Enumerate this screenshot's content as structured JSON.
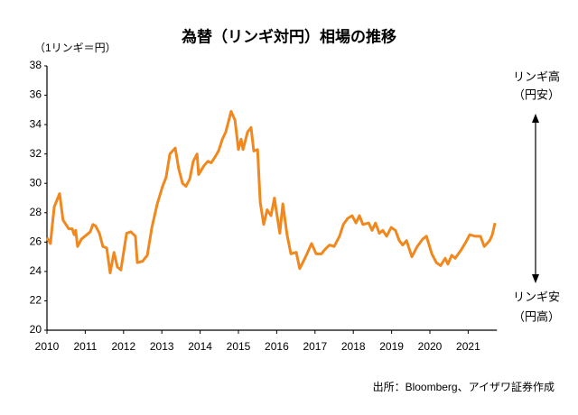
{
  "chart_data": {
    "type": "line",
    "title": "為替（リンギ対円）相場の推移",
    "y_unit": "（1リンギ＝円）",
    "annotations": [
      "リンギ高",
      "（円安）",
      "リンギ安",
      "（円高）"
    ],
    "source": "出所：Bloomberg、アイザワ証券作成",
    "xlim": [
      2010,
      2021.75
    ],
    "xticks": [
      2010,
      2011,
      2012,
      2013,
      2014,
      2015,
      2016,
      2017,
      2018,
      2019,
      2020,
      2021
    ],
    "ylim": [
      20,
      38
    ],
    "yticks": [
      20,
      22,
      24,
      26,
      28,
      30,
      32,
      34,
      36,
      38
    ],
    "grid": false,
    "series": [
      {
        "name": "リンギ対円",
        "color": "#f0881e",
        "x": [
          2010.0,
          2010.09,
          2010.19,
          2010.33,
          2010.42,
          2010.57,
          2010.66,
          2010.71,
          2010.75,
          2010.8,
          2010.9,
          2011.04,
          2011.13,
          2011.2,
          2011.27,
          2011.37,
          2011.46,
          2011.56,
          2011.65,
          2011.75,
          2011.84,
          2011.93,
          2012.08,
          2012.19,
          2012.31,
          2012.36,
          2012.5,
          2012.62,
          2012.74,
          2012.88,
          2013.02,
          2013.11,
          2013.21,
          2013.35,
          2013.44,
          2013.54,
          2013.63,
          2013.73,
          2013.82,
          2013.92,
          2013.96,
          2014.1,
          2014.2,
          2014.29,
          2014.39,
          2014.48,
          2014.58,
          2014.67,
          2014.81,
          2014.91,
          2015.0,
          2015.07,
          2015.12,
          2015.24,
          2015.33,
          2015.4,
          2015.5,
          2015.57,
          2015.66,
          2015.75,
          2015.85,
          2015.94,
          2016.08,
          2016.16,
          2016.27,
          2016.37,
          2016.51,
          2016.6,
          2016.7,
          2016.79,
          2016.91,
          2017.03,
          2017.17,
          2017.26,
          2017.38,
          2017.5,
          2017.64,
          2017.74,
          2017.85,
          2017.97,
          2018.07,
          2018.16,
          2018.25,
          2018.4,
          2018.49,
          2018.58,
          2018.68,
          2018.77,
          2018.87,
          2018.99,
          2019.1,
          2019.2,
          2019.29,
          2019.39,
          2019.53,
          2019.67,
          2019.81,
          2019.91,
          2020.05,
          2020.17,
          2020.28,
          2020.4,
          2020.47,
          2020.57,
          2020.66,
          2020.8,
          2020.94,
          2021.04,
          2021.18,
          2021.32,
          2021.42,
          2021.56,
          2021.63,
          2021.7
        ],
        "values": [
          26.3,
          25.9,
          28.4,
          29.3,
          27.5,
          26.9,
          26.9,
          26.5,
          26.8,
          25.7,
          26.2,
          26.5,
          26.7,
          27.2,
          27.1,
          26.6,
          25.7,
          25.6,
          23.9,
          25.3,
          24.3,
          24.1,
          26.6,
          26.7,
          26.4,
          24.6,
          24.7,
          25.1,
          27.0,
          28.6,
          29.8,
          30.4,
          32.0,
          32.4,
          31.0,
          30.0,
          29.8,
          30.3,
          31.5,
          32.0,
          30.6,
          31.2,
          31.5,
          31.4,
          31.8,
          32.2,
          33.0,
          33.5,
          34.9,
          34.3,
          32.3,
          33.0,
          32.3,
          33.5,
          33.8,
          32.2,
          32.3,
          28.7,
          27.2,
          28.2,
          27.8,
          29.0,
          26.6,
          28.6,
          26.5,
          25.2,
          25.3,
          24.2,
          24.7,
          25.2,
          25.9,
          25.2,
          25.2,
          25.5,
          25.8,
          25.7,
          26.4,
          27.2,
          27.6,
          27.8,
          27.3,
          27.8,
          27.2,
          27.3,
          26.8,
          27.3,
          26.6,
          26.8,
          26.4,
          27.0,
          26.8,
          26.1,
          25.8,
          26.1,
          25.0,
          25.7,
          26.2,
          26.4,
          25.2,
          24.6,
          24.4,
          24.9,
          24.5,
          25.1,
          24.9,
          25.4,
          26.0,
          26.5,
          26.4,
          26.4,
          25.7,
          26.1,
          26.5,
          27.3
        ]
      }
    ]
  }
}
